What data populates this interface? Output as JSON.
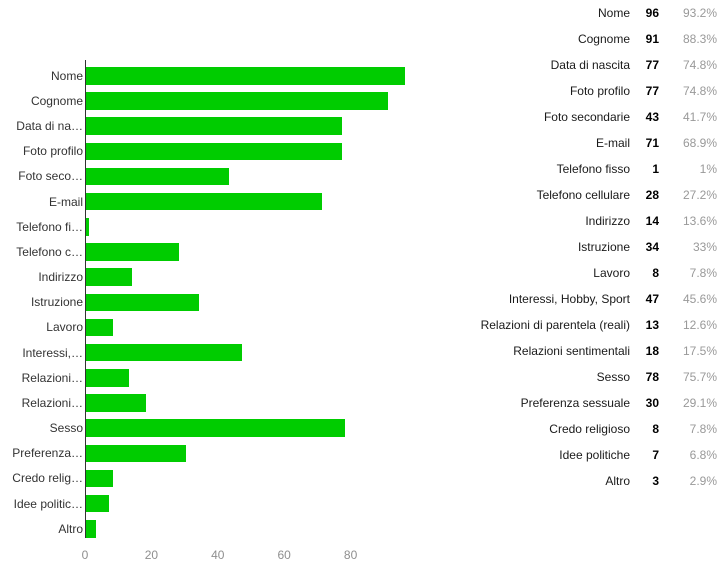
{
  "chart_data": {
    "type": "bar",
    "orientation": "horizontal",
    "title": "",
    "xlabel": "",
    "ylabel": "",
    "grid": false,
    "legend_position": "right-table",
    "bar_color": "#00cc00",
    "axis_color": "#333333",
    "tick_label_color": "#8f8f8f",
    "categories": [
      "Nome",
      "Cognome",
      "Data di nascita",
      "Foto profilo",
      "Foto secondarie",
      "E-mail",
      "Telefono fisso",
      "Telefono cellulare",
      "Indirizzo",
      "Istruzione",
      "Lavoro",
      "Interessi, Hobby, Sport",
      "Relazioni di parentela (reali)",
      "Relazioni sentimentali",
      "Sesso",
      "Preferenza sessuale",
      "Credo religioso",
      "Idee politiche",
      "Altro"
    ],
    "bar_labels": [
      "Nome",
      "Cognome",
      "Data di na…",
      "Foto profilo",
      "Foto seco…",
      "E-mail",
      "Telefono fi…",
      "Telefono c…",
      "Indirizzo",
      "Istruzione",
      "Lavoro",
      "Interessi,…",
      "Relazioni…",
      "Relazioni…",
      "Sesso",
      "Preferenza…",
      "Credo relig…",
      "Idee politic…",
      "Altro"
    ],
    "values": [
      96,
      91,
      77,
      77,
      43,
      71,
      1,
      28,
      14,
      34,
      8,
      47,
      13,
      18,
      78,
      30,
      8,
      7,
      3
    ],
    "percentages": [
      "93.2%",
      "88.3%",
      "74.8%",
      "74.8%",
      "41.7%",
      "68.9%",
      "1%",
      "27.2%",
      "13.6%",
      "33%",
      "7.8%",
      "45.6%",
      "12.6%",
      "17.5%",
      "75.7%",
      "29.1%",
      "7.8%",
      "6.8%",
      "2.9%"
    ],
    "x_ticks": [
      "0",
      "20",
      "40",
      "60",
      "80"
    ],
    "x_tick_values": [
      0,
      20,
      40,
      60,
      80
    ],
    "xlim": [
      0,
      97
    ]
  }
}
